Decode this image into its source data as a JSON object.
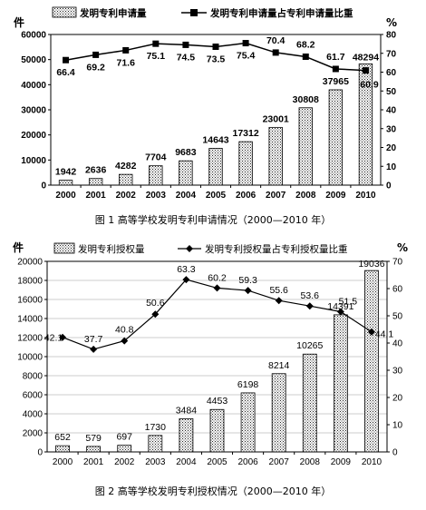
{
  "chart_data": [
    {
      "type": "bar",
      "combo_line": true,
      "categories": [
        "2000",
        "2001",
        "2002",
        "2003",
        "2004",
        "2005",
        "2006",
        "2007",
        "2008",
        "2009",
        "2010"
      ],
      "series": [
        {
          "name": "发明专利申请量",
          "type": "bar",
          "axis": "left",
          "values": [
            1942,
            2636,
            4282,
            7704,
            9683,
            14643,
            17312,
            23001,
            30808,
            37965,
            48294
          ]
        },
        {
          "name": "发明专利申请量占专利申请量比重",
          "type": "line",
          "axis": "right",
          "marker": "square",
          "values": [
            66.4,
            69.2,
            71.6,
            75.1,
            74.5,
            73.5,
            75.4,
            70.4,
            68.2,
            61.7,
            60.9
          ]
        }
      ],
      "y_left": {
        "unit": "件",
        "min": 0,
        "max": 60000,
        "ticks": [
          "0",
          "10000",
          "20000",
          "30000",
          "40000",
          "50000",
          "60000"
        ]
      },
      "y_right": {
        "unit": "%",
        "min": 0,
        "max": 80,
        "ticks": [
          "0",
          "10",
          "20",
          "30",
          "40",
          "50",
          "60",
          "70",
          "80"
        ]
      },
      "caption": "图 1 高等学校发明专利申请情况（2000—2010 年）",
      "legend_placement": "top",
      "grid": false
    },
    {
      "type": "bar",
      "combo_line": true,
      "categories": [
        "2000",
        "2001",
        "2002",
        "2003",
        "2004",
        "2005",
        "2006",
        "2007",
        "2008",
        "2009",
        "2010"
      ],
      "series": [
        {
          "name": "发明专利授权量",
          "type": "bar",
          "axis": "left",
          "values": [
            652,
            579,
            697,
            1730,
            3484,
            4453,
            6198,
            8214,
            10265,
            14391,
            19036
          ]
        },
        {
          "name": "发明专利授权量占专利授权量比重",
          "type": "line",
          "axis": "right",
          "marker": "diamond",
          "values": [
            42.1,
            37.7,
            40.8,
            50.6,
            63.3,
            60.2,
            59.3,
            55.6,
            53.6,
            51.5,
            44.1
          ]
        }
      ],
      "y_left": {
        "unit": "件",
        "min": 0,
        "max": 20000,
        "ticks": [
          "0",
          "2000",
          "4000",
          "6000",
          "8000",
          "10000",
          "12000",
          "14000",
          "16000",
          "18000",
          "20000"
        ]
      },
      "y_right": {
        "unit": "%",
        "min": 0,
        "max": 70,
        "ticks": [
          "0",
          "10",
          "20",
          "30",
          "40",
          "50",
          "60",
          "70"
        ]
      },
      "caption": "图 2 高等学校发明专利授权情况（2000—2010 年）",
      "legend_placement": "top",
      "grid": true
    }
  ]
}
